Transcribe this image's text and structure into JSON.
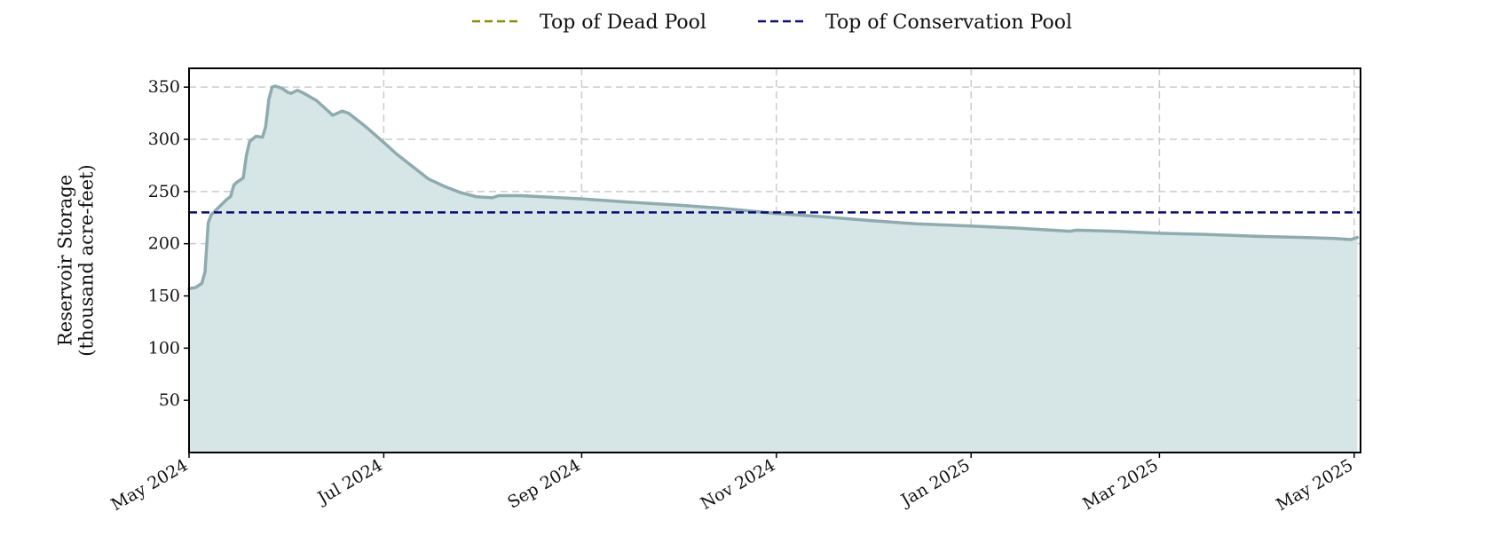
{
  "chart_data": {
    "type": "area",
    "title": "",
    "xlabel": "",
    "ylabel": [
      "Reservoir Storage",
      "(thousand acre-feet)"
    ],
    "x_range": [
      "2024-05-01",
      "2025-05-03"
    ],
    "ylim": [
      0,
      368
    ],
    "y_ticks": [
      50,
      100,
      150,
      200,
      250,
      300,
      350
    ],
    "x_ticks": [
      {
        "date": "2024-05-01",
        "label": "May 2024"
      },
      {
        "date": "2024-07-01",
        "label": "Jul 2024"
      },
      {
        "date": "2024-09-01",
        "label": "Sep 2024"
      },
      {
        "date": "2024-11-01",
        "label": "Nov 2024"
      },
      {
        "date": "2025-01-01",
        "label": "Jan 2025"
      },
      {
        "date": "2025-03-01",
        "label": "Mar 2025"
      },
      {
        "date": "2025-05-01",
        "label": "May 2025"
      }
    ],
    "grid": true,
    "legend_position": "top-center",
    "storage_series": {
      "color": "#8eabb0",
      "fill_color": "#d6e6e7",
      "points": [
        [
          "2024-05-01",
          157
        ],
        [
          "2024-05-03",
          158
        ],
        [
          "2024-05-05",
          162
        ],
        [
          "2024-05-06",
          173
        ],
        [
          "2024-05-07",
          220
        ],
        [
          "2024-05-08",
          228
        ],
        [
          "2024-05-10",
          234
        ],
        [
          "2024-05-12",
          240
        ],
        [
          "2024-05-13",
          243
        ],
        [
          "2024-05-14",
          245
        ],
        [
          "2024-05-15",
          256
        ],
        [
          "2024-05-16",
          259
        ],
        [
          "2024-05-17",
          261
        ],
        [
          "2024-05-18",
          263
        ],
        [
          "2024-05-19",
          285
        ],
        [
          "2024-05-20",
          298
        ],
        [
          "2024-05-22",
          303
        ],
        [
          "2024-05-24",
          302
        ],
        [
          "2024-05-25",
          312
        ],
        [
          "2024-05-26",
          338
        ],
        [
          "2024-05-27",
          350
        ],
        [
          "2024-05-28",
          351
        ],
        [
          "2024-05-30",
          349
        ],
        [
          "2024-06-01",
          345
        ],
        [
          "2024-06-02",
          344
        ],
        [
          "2024-06-04",
          347
        ],
        [
          "2024-06-06",
          344
        ],
        [
          "2024-06-10",
          337
        ],
        [
          "2024-06-15",
          323
        ],
        [
          "2024-06-18",
          327
        ],
        [
          "2024-06-20",
          325
        ],
        [
          "2024-06-25",
          313
        ],
        [
          "2024-07-01",
          297
        ],
        [
          "2024-07-05",
          286
        ],
        [
          "2024-07-10",
          274
        ],
        [
          "2024-07-15",
          262
        ],
        [
          "2024-07-20",
          255
        ],
        [
          "2024-07-25",
          249
        ],
        [
          "2024-07-30",
          245
        ],
        [
          "2024-08-04",
          244
        ],
        [
          "2024-08-06",
          246
        ],
        [
          "2024-08-13",
          246
        ],
        [
          "2024-09-01",
          243
        ],
        [
          "2024-09-15",
          240
        ],
        [
          "2024-10-01",
          237
        ],
        [
          "2024-10-15",
          234
        ],
        [
          "2024-11-01",
          229
        ],
        [
          "2024-11-15",
          226
        ],
        [
          "2024-12-01",
          222
        ],
        [
          "2024-12-15",
          219
        ],
        [
          "2025-01-01",
          217
        ],
        [
          "2025-01-15",
          215
        ],
        [
          "2025-02-01",
          212
        ],
        [
          "2025-02-03",
          213
        ],
        [
          "2025-02-15",
          212
        ],
        [
          "2025-03-01",
          210
        ],
        [
          "2025-03-15",
          209
        ],
        [
          "2025-04-01",
          207
        ],
        [
          "2025-04-15",
          206
        ],
        [
          "2025-04-25",
          205
        ],
        [
          "2025-04-30",
          204
        ],
        [
          "2025-05-02",
          206
        ]
      ]
    },
    "reference_lines": [
      {
        "name": "Top of Dead Pool",
        "value": null,
        "color": "#8b8b00",
        "style": "dashed"
      },
      {
        "name": "Top of Conservation Pool",
        "value": 230,
        "color": "#0a0a7a",
        "style": "dashed"
      }
    ]
  }
}
